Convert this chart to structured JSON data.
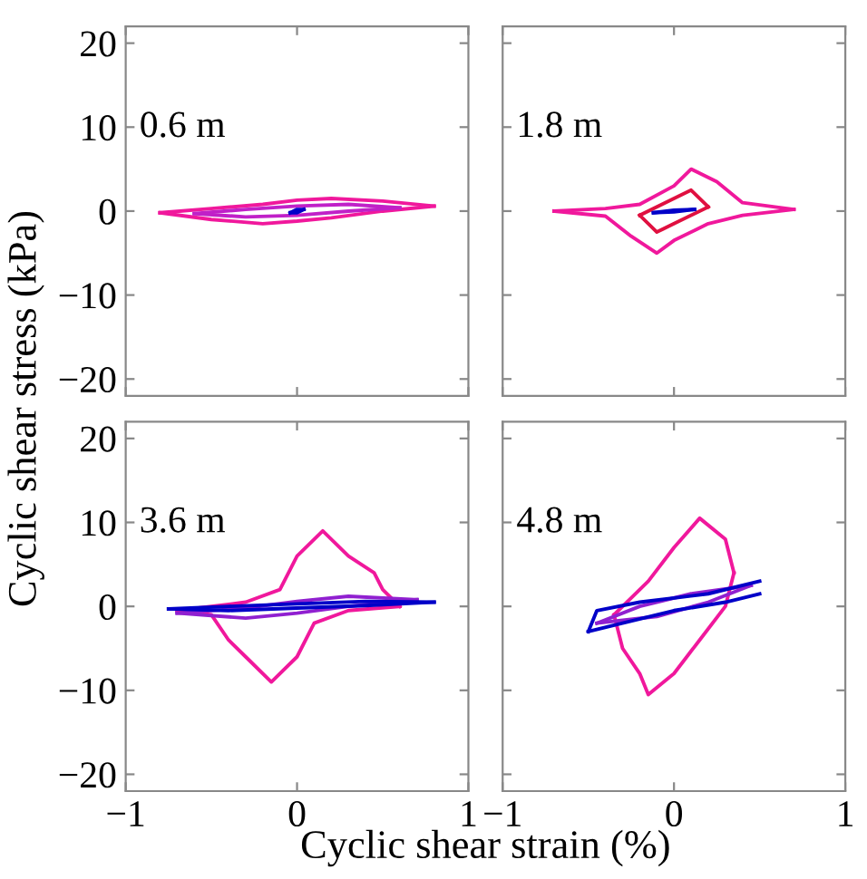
{
  "chart_data": [
    {
      "type": "line",
      "title": "0.6 m",
      "ylabel": "Cyclic shear stress (kPa)",
      "tick_labels": "y",
      "grid": false,
      "marker": "none",
      "line_style": "solid",
      "xlim": [
        -1,
        1
      ],
      "xticks": [
        -1,
        0,
        1
      ],
      "ylim": [
        -22,
        22
      ],
      "yticks": [
        -20,
        -10,
        0,
        10,
        20
      ],
      "series": [
        {
          "color": "#f0189c",
          "x": [
            -0.8,
            -0.5,
            -0.2,
            0,
            0.2,
            0.5,
            0.8
          ],
          "values": [
            -0.2,
            0.3,
            0.8,
            1.3,
            1.5,
            1.2,
            0.6
          ]
        },
        {
          "color": "#f0189c",
          "x": [
            -0.8,
            -0.5,
            -0.2,
            0,
            0.2,
            0.5,
            0.8
          ],
          "values": [
            -0.2,
            -1.0,
            -1.5,
            -1.2,
            -0.8,
            0,
            0.6
          ]
        },
        {
          "color": "#c020c8",
          "x": [
            -0.6,
            -0.3,
            0,
            0.3,
            0.6
          ],
          "values": [
            -0.3,
            0.2,
            0.6,
            0.8,
            0.4
          ]
        },
        {
          "color": "#c020c8",
          "x": [
            -0.6,
            -0.3,
            0,
            0.3,
            0.6
          ],
          "values": [
            -0.3,
            -0.7,
            -0.5,
            0,
            0.4
          ]
        },
        {
          "color": "#0000c8",
          "x": [
            -0.04,
            0,
            0.04
          ],
          "values": [
            -0.2,
            0.2,
            0.2
          ]
        },
        {
          "color": "#0000c8",
          "x": [
            -0.04,
            0,
            0.04
          ],
          "values": [
            -0.2,
            -0.2,
            0.2
          ]
        }
      ]
    },
    {
      "type": "line",
      "title": "1.8 m",
      "tick_labels": false,
      "grid": false,
      "marker": "none",
      "line_style": "solid",
      "xlim": [
        -1,
        1
      ],
      "xticks": [
        -1,
        0,
        1
      ],
      "ylim": [
        -22,
        22
      ],
      "yticks": [
        -20,
        -10,
        0,
        10,
        20
      ],
      "series": [
        {
          "color": "#f0189c",
          "x": [
            -0.7,
            -0.4,
            -0.2,
            0,
            0.1,
            0.25,
            0.4,
            0.7
          ],
          "values": [
            0,
            0.3,
            0.8,
            3,
            5,
            3.5,
            1,
            0.2
          ]
        },
        {
          "color": "#f0189c",
          "x": [
            -0.7,
            -0.4,
            -0.25,
            -0.1,
            0,
            0.2,
            0.4,
            0.7
          ],
          "values": [
            0,
            -0.6,
            -3,
            -5,
            -3.5,
            -1.5,
            -0.5,
            0.2
          ]
        },
        {
          "color": "#e01040",
          "x": [
            -0.2,
            0,
            0.1,
            0.2
          ],
          "values": [
            -0.5,
            1.5,
            2.5,
            0.5
          ]
        },
        {
          "color": "#e01040",
          "x": [
            -0.2,
            -0.1,
            0,
            0.2
          ],
          "values": [
            -0.5,
            -2.5,
            -1.5,
            0.5
          ]
        },
        {
          "color": "#0000c8",
          "x": [
            -0.12,
            0,
            0.12
          ],
          "values": [
            -0.2,
            0.1,
            0.2
          ]
        },
        {
          "color": "#0000c8",
          "x": [
            -0.12,
            0,
            0.12
          ],
          "values": [
            -0.2,
            -0.1,
            0.2
          ]
        }
      ]
    },
    {
      "type": "line",
      "title": "3.6 m",
      "xlabel": "Cyclic shear strain (%)",
      "grid": false,
      "marker": "none",
      "line_style": "solid",
      "xlim": [
        -1,
        1
      ],
      "xticks": [
        -1,
        0,
        1
      ],
      "ylim": [
        -22,
        22
      ],
      "yticks": [
        -20,
        -10,
        0,
        10,
        20
      ],
      "series": [
        {
          "color": "#f0189c",
          "x": [
            -0.7,
            -0.5,
            -0.4,
            -0.3,
            -0.15,
            0,
            0.1,
            0.3,
            0.6
          ],
          "values": [
            -0.5,
            -1,
            -4,
            -6,
            -9,
            -6,
            -2,
            -0.5,
            0
          ]
        },
        {
          "color": "#f0189c",
          "x": [
            -0.7,
            -0.3,
            -0.1,
            0,
            0.15,
            0.3,
            0.45,
            0.5,
            0.6
          ],
          "values": [
            -0.5,
            0.5,
            2,
            6,
            9,
            6,
            4,
            2,
            0
          ]
        },
        {
          "color": "#9020d0",
          "x": [
            -0.7,
            -0.3,
            0,
            0.3,
            0.7
          ],
          "values": [
            -0.8,
            -0.2,
            0.6,
            1.2,
            0.8
          ]
        },
        {
          "color": "#9020d0",
          "x": [
            -0.7,
            -0.3,
            0,
            0.3,
            0.7
          ],
          "values": [
            -0.8,
            -1.4,
            -0.8,
            0,
            0.8
          ]
        },
        {
          "color": "#0000c8",
          "x": [
            -0.75,
            -0.4,
            0,
            0.4,
            0.8
          ],
          "values": [
            -0.3,
            0,
            0.3,
            0.6,
            0.5
          ]
        },
        {
          "color": "#0000c8",
          "x": [
            -0.75,
            -0.4,
            0,
            0.4,
            0.8
          ],
          "values": [
            -0.3,
            -0.5,
            -0.2,
            0.1,
            0.5
          ]
        }
      ]
    },
    {
      "type": "line",
      "title": "4.8 m",
      "tick_labels": "x",
      "grid": false,
      "marker": "none",
      "line_style": "solid",
      "xlim": [
        -1,
        1
      ],
      "xticks": [
        -1,
        0,
        1
      ],
      "ylim": [
        -22,
        22
      ],
      "yticks": [
        -20,
        -10,
        0,
        10,
        20
      ],
      "series": [
        {
          "color": "#f0189c",
          "x": [
            -0.35,
            -0.3,
            -0.2,
            -0.15,
            0,
            0.15,
            0.3,
            0.35
          ],
          "values": [
            -1,
            -5,
            -8,
            -10.5,
            -8,
            -4,
            0,
            4
          ]
        },
        {
          "color": "#f0189c",
          "x": [
            -0.35,
            -0.15,
            0,
            0.15,
            0.3,
            0.35
          ],
          "values": [
            -1,
            3,
            7,
            10.5,
            8,
            4
          ]
        },
        {
          "color": "#9020d0",
          "x": [
            -0.45,
            -0.2,
            0.1,
            0.45
          ],
          "values": [
            -2,
            0,
            1.5,
            2.5
          ]
        },
        {
          "color": "#9020d0",
          "x": [
            -0.45,
            -0.1,
            0.2,
            0.45
          ],
          "values": [
            -2,
            -1.2,
            0.5,
            2.5
          ]
        },
        {
          "color": "#0000c8",
          "x": [
            -0.5,
            -0.45,
            -0.2,
            0.2,
            0.5
          ],
          "values": [
            -3,
            -0.5,
            0.5,
            1.5,
            3
          ]
        },
        {
          "color": "#0000c8",
          "x": [
            -0.5,
            -0.3,
            0,
            0.3,
            0.5
          ],
          "values": [
            -3,
            -2,
            -0.5,
            0.5,
            1.5
          ]
        }
      ]
    }
  ]
}
